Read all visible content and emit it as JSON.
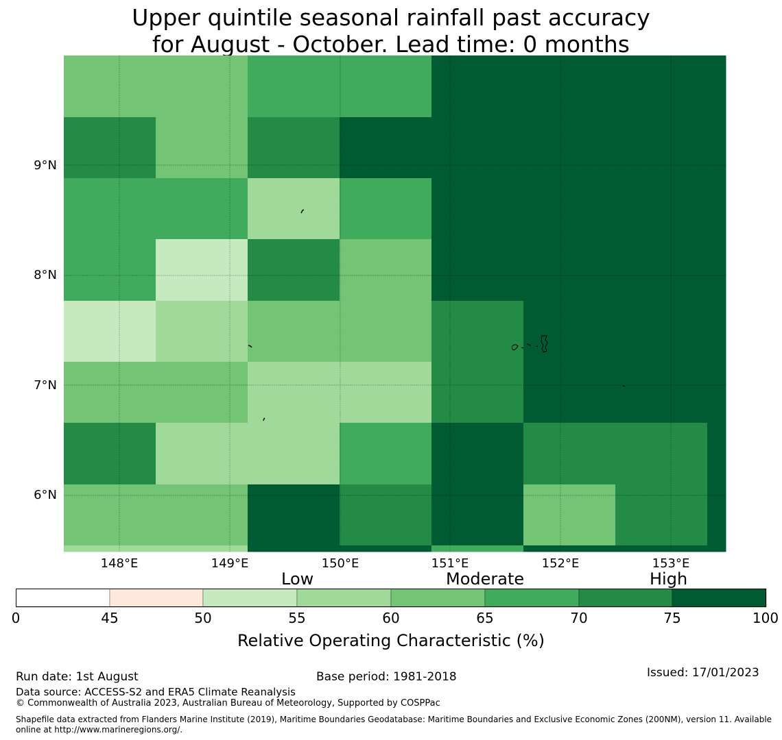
{
  "title_line1": "Upper quintile seasonal rainfall past accuracy",
  "title_line2": "for August - October. Lead time: 0 months",
  "lat_labels": [
    "9°N",
    "8°N",
    "7°N",
    "6°N"
  ],
  "lon_labels": [
    "148°E",
    "149°E",
    "150°E",
    "151°E",
    "152°E",
    "153°E"
  ],
  "category_labels": {
    "low": "Low",
    "moderate": "Moderate",
    "high": "High"
  },
  "colorbar": {
    "ticks": [
      "0",
      "45",
      "50",
      "55",
      "60",
      "65",
      "70",
      "75",
      "100"
    ],
    "colors": [
      "#ffffff",
      "#fee8de",
      "#c7e9c0",
      "#a1d99b",
      "#74c476",
      "#41ab5d",
      "#238b45",
      "#005a32"
    ],
    "title": "Relative Operating Characteristic (%)"
  },
  "grid_colors_by_row": [
    [
      "#74c476",
      "#74c476",
      "#41ab5d",
      "#41ab5d",
      "#005a32",
      "#005a32",
      "#005a32",
      "#005a32"
    ],
    [
      "#238b45",
      "#74c476",
      "#238b45",
      "#005a32",
      "#005a32",
      "#005a32",
      "#005a32",
      "#005a32"
    ],
    [
      "#41ab5d",
      "#41ab5d",
      "#a1d99b",
      "#41ab5d",
      "#005a32",
      "#005a32",
      "#005a32",
      "#005a32"
    ],
    [
      "#41ab5d",
      "#c7e9c0",
      "#238b45",
      "#74c476",
      "#005a32",
      "#005a32",
      "#005a32",
      "#005a32"
    ],
    [
      "#c7e9c0",
      "#a1d99b",
      "#74c476",
      "#74c476",
      "#238b45",
      "#005a32",
      "#005a32",
      "#005a32"
    ],
    [
      "#74c476",
      "#74c476",
      "#a1d99b",
      "#a1d99b",
      "#238b45",
      "#005a32",
      "#005a32",
      "#005a32"
    ],
    [
      "#238b45",
      "#a1d99b",
      "#a1d99b",
      "#41ab5d",
      "#005a32",
      "#238b45",
      "#238b45",
      "#005a32"
    ],
    [
      "#74c476",
      "#74c476",
      "#005a32",
      "#238b45",
      "#005a32",
      "#74c476",
      "#238b45",
      "#005a32"
    ],
    [
      "#a1d99b",
      "#a1d99b",
      "#005a32",
      "#005a32",
      "#41ab5d",
      "#005a32",
      "#005a32",
      "#005a32"
    ]
  ],
  "footer": {
    "run_date": "Run date: 1st August",
    "base_period": "Base period: 1981-2018",
    "issued": "Issued: 17/01/2023",
    "data_source": "Data source: ACCESS-S2 and ERA5 Climate Reanalysis",
    "copyright": "© Commonwealth of Australia 2023, Australian Bureau of Meteorology, Supported by COSPPac",
    "shapefile_line1": "Shapefile data extracted from Flanders Marine Institute (2019), Maritime Boundaries Geodatabase: Maritime Boundaries and Exclusive Economic Zones (200NM), version 11. Available",
    "shapefile_line2": "online at http://www.marineregions.org/."
  }
}
